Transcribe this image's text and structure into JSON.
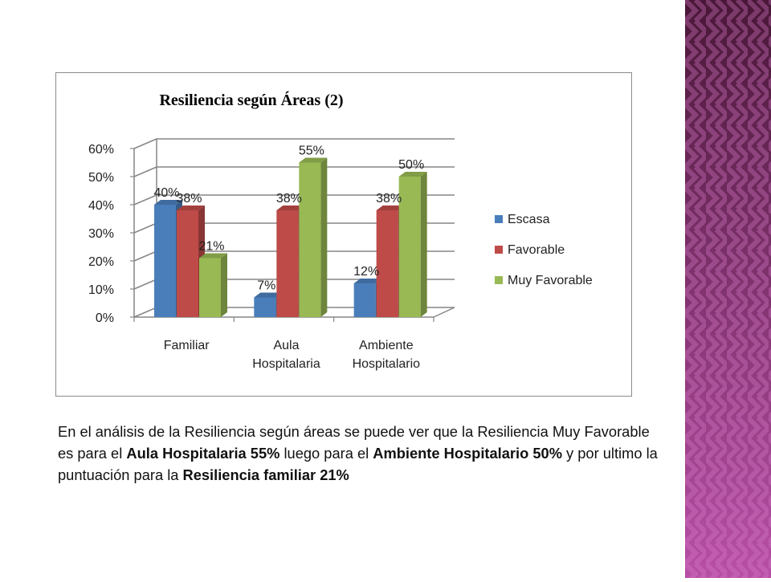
{
  "chart_data": {
    "type": "bar",
    "title": "Resiliencia según Áreas  (2)",
    "categories": [
      [
        "Familiar"
      ],
      [
        "Aula",
        "Hospitalaria"
      ],
      [
        "Ambiente",
        "Hospitalario"
      ]
    ],
    "series": [
      {
        "name": "Escasa",
        "values": [
          40,
          7,
          12
        ],
        "color": "#4a7ebb"
      },
      {
        "name": "Favorable",
        "values": [
          38,
          38,
          38
        ],
        "color": "#be4b48"
      },
      {
        "name": "Muy Favorable",
        "values": [
          21,
          55,
          50
        ],
        "color": "#98b954"
      }
    ],
    "ylim": [
      0,
      60
    ],
    "yticks": [
      "0%",
      "10%",
      "20%",
      "30%",
      "40%",
      "50%",
      "60%"
    ],
    "value_suffix": "%",
    "grid": true,
    "legend_position": "right",
    "style": "3d-clustered-column"
  },
  "description": {
    "p1": "En el análisis de la Resiliencia según áreas se puede ver que la Resiliencia Muy Favorable  es para el ",
    "b1": "Aula Hospitalaria  55%",
    "p2": " luego para el ",
    "b2": "Ambiente Hospitalario  50%",
    "p3": " y por ultimo la puntuación para la ",
    "b3": "Resiliencia familiar 21%"
  },
  "colors": {
    "side_panel_top": "#4a1738",
    "side_panel_bottom": "#b84fa6",
    "side_panel_pattern": "#d77cc8"
  }
}
